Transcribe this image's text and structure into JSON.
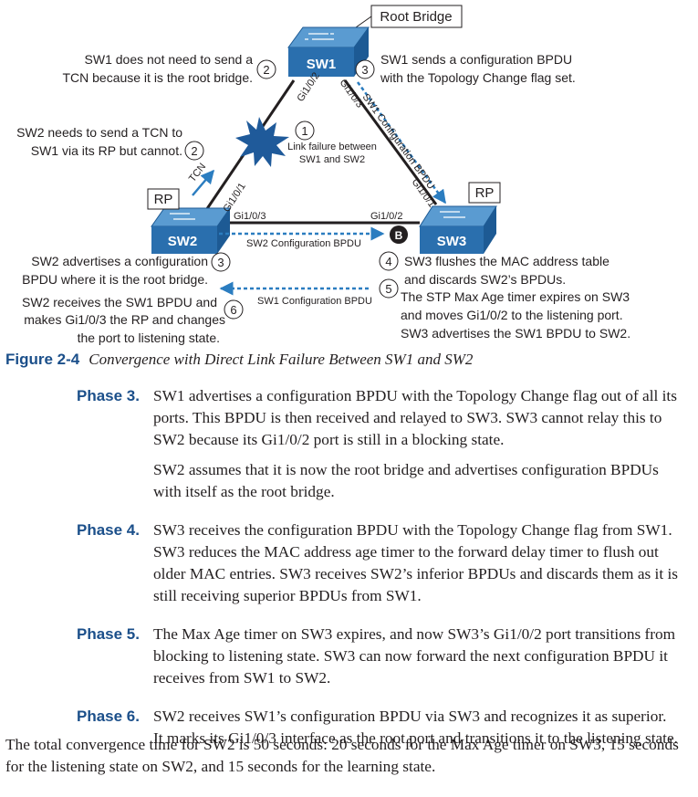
{
  "figure": {
    "root_bridge_label": "Root Bridge",
    "sw1": "SW1",
    "sw2": "SW2",
    "sw3": "SW3",
    "rp_sw2": "RP",
    "rp_sw3": "RP",
    "port_sw1_gi102": "Gi1/0/2",
    "port_sw1_gi103": "Gi1/0/3",
    "port_sw2_gi101": "Gi1/0/1",
    "port_sw2_gi103": "Gi1/0/3",
    "port_sw3_gi102": "Gi1/0/2",
    "port_sw3_gi101": "Gi1/0/1",
    "tcn": "TCN",
    "sw1_config_bpdu_diag": "SW1 Configuration BPDU",
    "sw2_config_bpdu": "SW2 Configuration BPDU",
    "sw1_config_bpdu_bottom": "SW1 Configuration BPDU",
    "blocked_marker": "B",
    "link_failure": [
      "Link failure between",
      "SW1 and SW2"
    ],
    "callouts": {
      "c1_num": "1",
      "c2a_num": "2",
      "c2a_text": [
        "SW1 does not need to send a",
        "TCN because it is the root bridge."
      ],
      "c2b_num": "2",
      "c2b_text": [
        "SW2 needs to send a TCN to",
        "SW1 via its RP but cannot."
      ],
      "c3a_num": "3",
      "c3a_text": [
        "SW1 sends a configuration BPDU",
        "with the Topology Change flag set."
      ],
      "c3b_num": "3",
      "c3b_text": [
        "SW2 advertises a configuration",
        "BPDU where it is the root bridge."
      ],
      "c4_num": "4",
      "c4_text": [
        "SW3 flushes the MAC address table",
        "and discards SW2’s BPDUs."
      ],
      "c5_num": "5",
      "c5_text": [
        "The STP Max Age timer expires on SW3",
        "and moves Gi1/0/2 to the listening port.",
        "SW3 advertises the SW1 BPDU to SW2."
      ],
      "c6_num": "6",
      "c6_text": [
        "SW2 receives the SW1 BPDU and",
        "makes Gi1/0/3 the RP and changes",
        "the port to listening state."
      ]
    },
    "caption_label": "Figure 2-4",
    "caption_text": "Convergence with Direct Link Failure Between SW1 and SW2"
  },
  "phases": [
    {
      "label": "Phase 3.",
      "paragraphs": [
        "SW1 advertises a configuration BPDU with the Topology Change flag out of all its ports. This BPDU is then received and relayed to SW3. SW3 cannot relay this to SW2 because its Gi1/0/2 port is still in a blocking state.",
        "SW2 assumes that it is now the root bridge and advertises configuration BPDUs with itself as the root bridge."
      ]
    },
    {
      "label": "Phase 4.",
      "paragraphs": [
        "SW3 receives the configuration BPDU with the Topology Change flag from SW1. SW3 reduces the MAC address age timer to the forward delay timer to flush out older MAC entries. SW3 receives SW2’s inferior BPDUs and discards them as it is still receiving superior BPDUs from SW1."
      ]
    },
    {
      "label": "Phase 5.",
      "paragraphs": [
        "The Max Age timer on SW3 expires, and now SW3’s Gi1/0/2 port transitions from blocking to listening state. SW3 can now forward the next configuration BPDU it receives from SW1 to SW2."
      ]
    },
    {
      "label": "Phase 6.",
      "paragraphs": [
        "SW2 receives SW1’s configuration BPDU via SW3 and recognizes it as superior. It marks its Gi1/0/3 interface as the root port and transitions it to the listening state."
      ]
    }
  ],
  "summary": "The total convergence time for SW2 is 50 seconds: 20 seconds for the Max Age timer on SW3, 15 seconds for the listening state on SW2, and 15 seconds for the learning state.",
  "colors": {
    "switch_top": "#5a9bd1",
    "switch_front": "#2a6fae",
    "switch_side": "#1d5a94",
    "accent_blue": "#1b4f8a",
    "bpdu_arrow": "#2b7dc0",
    "burst": "#1f5a9a"
  }
}
